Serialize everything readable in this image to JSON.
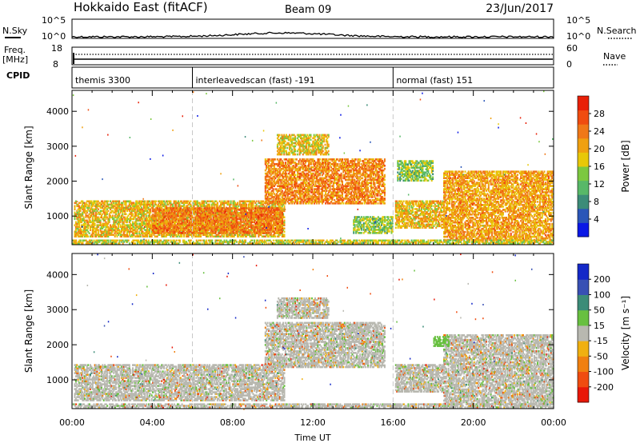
{
  "header": {
    "station": "Hokkaido East (fitACF)",
    "beam": "Beam 09",
    "date": "23/Jun/2017"
  },
  "status_panels": {
    "nsky_label": "N.Sky",
    "nsky_ticks": [
      "10^5",
      "10^0"
    ],
    "nsearch_label": "N.Search",
    "nsearch_ticks": [
      "10^5",
      "10^0"
    ],
    "freq_label": "Freq.",
    "freq_unit": "[MHz]",
    "freq_ticks": [
      "18",
      "8"
    ],
    "nave_label": "Nave",
    "nave_ticks": [
      "60",
      "0"
    ],
    "cpid_label": "CPID",
    "cpid_segments": [
      {
        "name": "themis 3300",
        "start_hour": 0,
        "end_hour": 6
      },
      {
        "name": "interleavedscan (fast) -191",
        "start_hour": 6,
        "end_hour": 16
      },
      {
        "name": "normal (fast) 151",
        "start_hour": 16,
        "end_hour": 24
      }
    ]
  },
  "chart_data": [
    {
      "type": "heatmap",
      "title": "",
      "xlabel": "Time UT",
      "ylabel": "Slant Range [km]",
      "x_ticks": [
        "00:00",
        "04:00",
        "08:00",
        "12:00",
        "16:00",
        "20:00",
        "00:00"
      ],
      "xlim_hours": [
        0,
        24
      ],
      "y_ticks": [
        1000,
        2000,
        3000,
        4000
      ],
      "ylim_km": [
        180,
        4600
      ],
      "colorbar": {
        "label": "Power [dB]",
        "ticks": [
          "4",
          "8",
          "12",
          "16",
          "20",
          "24",
          "28"
        ],
        "range": [
          0,
          32
        ],
        "colors": [
          "#0a18e6",
          "#2a56b8",
          "#3c8c78",
          "#58b868",
          "#7cc840",
          "#e8c808",
          "#f0a010",
          "#f07818",
          "#f04c10",
          "#e82008"
        ]
      },
      "regions": [
        {
          "t0": 0.1,
          "t1": 10.6,
          "r0": 400,
          "r1": 1450,
          "level": 0.78
        },
        {
          "t0": 4.0,
          "t1": 10.5,
          "r0": 500,
          "r1": 1250,
          "level": 0.95
        },
        {
          "t0": 9.6,
          "t1": 15.6,
          "r0": 1350,
          "r1": 2650,
          "level": 0.92
        },
        {
          "t0": 10.2,
          "t1": 12.8,
          "r0": 2750,
          "r1": 3350,
          "level": 0.75
        },
        {
          "t0": 14.0,
          "t1": 16.0,
          "r0": 500,
          "r1": 1000,
          "level": 0.6
        },
        {
          "t0": 16.1,
          "t1": 18.5,
          "r0": 650,
          "r1": 1450,
          "level": 0.8
        },
        {
          "t0": 16.2,
          "t1": 18.0,
          "r0": 2000,
          "r1": 2600,
          "level": 0.6
        },
        {
          "t0": 18.5,
          "t1": 24.0,
          "r0": 300,
          "r1": 2300,
          "level": 0.85
        },
        {
          "t0": 0.0,
          "t1": 24.0,
          "r0": 200,
          "r1": 330,
          "level": 0.7
        }
      ]
    },
    {
      "type": "heatmap",
      "title": "",
      "xlabel": "Time UT",
      "ylabel": "Slant Range [km]",
      "x_ticks": [
        "00:00",
        "04:00",
        "08:00",
        "12:00",
        "16:00",
        "20:00",
        "00:00"
      ],
      "xlim_hours": [
        0,
        24
      ],
      "y_ticks": [
        1000,
        2000,
        3000,
        4000
      ],
      "ylim_km": [
        180,
        4600
      ],
      "colorbar": {
        "label": "Velocity [m s⁻¹]",
        "ticks": [
          "200",
          "100",
          "50",
          "15",
          "-15",
          "-50",
          "-100",
          "-200"
        ],
        "colors": [
          "#1428c8",
          "#3850b4",
          "#3c8c78",
          "#68c040",
          "#b8b8b0",
          "#f0b010",
          "#f08010",
          "#f04c10",
          "#e81808"
        ]
      },
      "regions": [
        {
          "t0": 0.1,
          "t1": 10.6,
          "r0": 400,
          "r1": 1450,
          "level": 0.5
        },
        {
          "t0": 9.6,
          "t1": 15.6,
          "r0": 1350,
          "r1": 2650,
          "level": 0.5
        },
        {
          "t0": 10.2,
          "t1": 12.8,
          "r0": 2750,
          "r1": 3350,
          "level": 0.5
        },
        {
          "t0": 16.1,
          "t1": 18.5,
          "r0": 650,
          "r1": 1450,
          "level": 0.5
        },
        {
          "t0": 18.5,
          "t1": 24.0,
          "r0": 300,
          "r1": 2300,
          "level": 0.5
        },
        {
          "t0": 18.0,
          "t1": 18.8,
          "r0": 1950,
          "r1": 2250,
          "level": 0.62
        },
        {
          "t0": 0.0,
          "t1": 24.0,
          "r0": 200,
          "r1": 330,
          "level": 0.4
        }
      ]
    }
  ]
}
